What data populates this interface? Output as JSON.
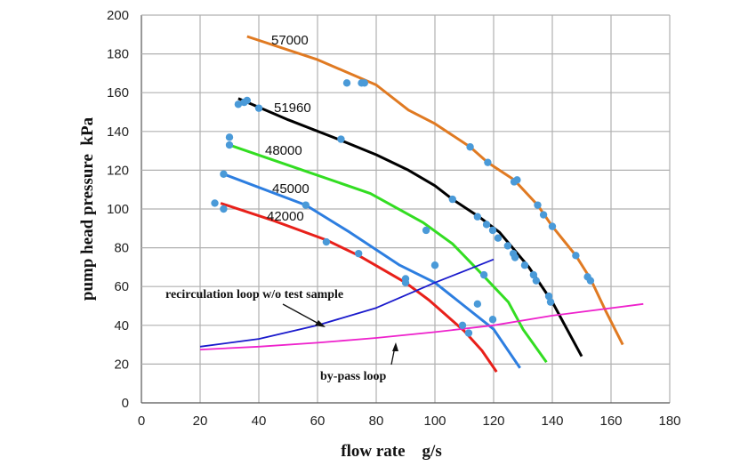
{
  "chart_data": {
    "type": "line",
    "title": "",
    "xlabel": "flow rate    g/s",
    "ylabel": "pump head pressure  kPa",
    "xlim": [
      0,
      180
    ],
    "ylim": [
      0,
      200
    ],
    "xticks": [
      0,
      20,
      40,
      60,
      80,
      100,
      120,
      140,
      160,
      180
    ],
    "yticks": [
      0,
      20,
      40,
      60,
      80,
      100,
      120,
      140,
      160,
      180,
      200
    ],
    "grid": true,
    "marker_color": "#4a9ad8",
    "series": [
      {
        "name": "57000",
        "color": "#e07a22",
        "points": [
          [
            36,
            189
          ],
          [
            60,
            177
          ],
          [
            80,
            164
          ],
          [
            91,
            151
          ],
          [
            100,
            144
          ],
          [
            112,
            132
          ],
          [
            118,
            124
          ],
          [
            127,
            115
          ],
          [
            135,
            102
          ],
          [
            140,
            91
          ],
          [
            148,
            76
          ],
          [
            153,
            64
          ],
          [
            158,
            48
          ],
          [
            164,
            30
          ]
        ],
        "markers": [
          [
            70,
            165
          ],
          [
            75,
            165
          ],
          [
            76,
            165
          ],
          [
            112,
            132
          ],
          [
            118,
            124
          ],
          [
            127,
            114
          ],
          [
            128,
            115
          ],
          [
            135,
            102
          ],
          [
            137,
            97
          ],
          [
            140,
            91
          ],
          [
            148,
            76
          ],
          [
            152,
            65
          ],
          [
            153,
            63
          ]
        ]
      },
      {
        "name": "51960",
        "color": "#000000",
        "points": [
          [
            33,
            157
          ],
          [
            50,
            146
          ],
          [
            67,
            136
          ],
          [
            80,
            128
          ],
          [
            91,
            120
          ],
          [
            100,
            112
          ],
          [
            106,
            105
          ],
          [
            115,
            96
          ],
          [
            122,
            88
          ],
          [
            132,
            70
          ],
          [
            140,
            52
          ],
          [
            145,
            38
          ],
          [
            150,
            24
          ]
        ],
        "markers": [
          [
            33,
            154
          ],
          [
            35,
            155
          ],
          [
            36,
            156
          ],
          [
            40,
            152
          ],
          [
            68,
            136
          ],
          [
            106,
            105
          ],
          [
            114.5,
            96
          ],
          [
            117.6,
            92
          ],
          [
            119.7,
            89
          ],
          [
            121.5,
            85
          ],
          [
            124.8,
            81
          ],
          [
            126.7,
            77
          ],
          [
            127.3,
            75
          ],
          [
            130.6,
            71
          ],
          [
            133.6,
            66
          ],
          [
            134.5,
            63
          ],
          [
            138.8,
            55
          ],
          [
            139.4,
            52
          ]
        ]
      },
      {
        "name": "48000",
        "color": "#33dd22",
        "points": [
          [
            30,
            133
          ],
          [
            55,
            120
          ],
          [
            78,
            108
          ],
          [
            96,
            93
          ],
          [
            106,
            82
          ],
          [
            115,
            68
          ],
          [
            125,
            52
          ],
          [
            130,
            38
          ],
          [
            138,
            21
          ]
        ],
        "markers": [
          [
            30,
            137
          ],
          [
            30,
            133
          ],
          [
            97,
            89
          ],
          [
            116.7,
            66
          ]
        ]
      },
      {
        "name": "45000",
        "color": "#2d7ee0",
        "points": [
          [
            28,
            118
          ],
          [
            56,
            102
          ],
          [
            71,
            88
          ],
          [
            88,
            71
          ],
          [
            100,
            62
          ],
          [
            110,
            50
          ],
          [
            120,
            38
          ],
          [
            129,
            18
          ]
        ],
        "markers": [
          [
            28,
            118
          ],
          [
            56,
            102
          ],
          [
            100,
            71
          ],
          [
            114.5,
            51
          ],
          [
            119.7,
            43
          ]
        ]
      },
      {
        "name": "42000",
        "color": "#e8201a",
        "points": [
          [
            27,
            103
          ],
          [
            45,
            94
          ],
          [
            63,
            84
          ],
          [
            74,
            76
          ],
          [
            90,
            62
          ],
          [
            98,
            53
          ],
          [
            104,
            45
          ],
          [
            110,
            37
          ],
          [
            116,
            27
          ],
          [
            121,
            16
          ]
        ],
        "markers": [
          [
            25,
            103
          ],
          [
            28,
            100
          ],
          [
            63,
            83
          ],
          [
            74,
            77
          ],
          [
            90,
            64
          ],
          [
            90,
            62
          ],
          [
            109.4,
            40
          ],
          [
            111.5,
            36
          ]
        ]
      },
      {
        "name": "recirculation loop w/o test sample",
        "color": "#1a1acc",
        "points": [
          [
            20,
            29
          ],
          [
            40,
            33
          ],
          [
            60,
            40
          ],
          [
            80,
            49
          ],
          [
            100,
            62
          ],
          [
            110,
            68
          ],
          [
            120,
            74
          ]
        ],
        "markers": []
      },
      {
        "name": "by-pass loop",
        "color": "#ee22cc",
        "points": [
          [
            20,
            27.5
          ],
          [
            40,
            29
          ],
          [
            60,
            31
          ],
          [
            80,
            33.5
          ],
          [
            100,
            36.5
          ],
          [
            120,
            40
          ],
          [
            140,
            45
          ],
          [
            171,
            51
          ]
        ],
        "markers": []
      }
    ]
  }
}
